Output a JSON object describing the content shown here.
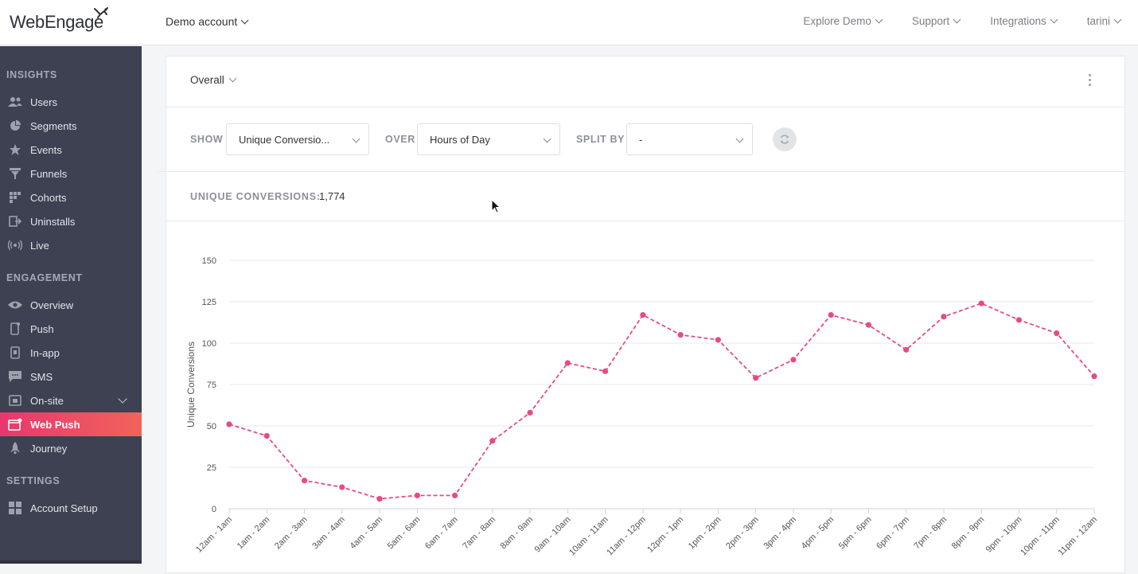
{
  "brand": {
    "logo_text": "WebEngage",
    "accent": "#e8376f",
    "line_color": "#e84a85",
    "sidebar_bg": "#3d4152"
  },
  "header": {
    "account": "Demo account",
    "nav": [
      "Explore Demo",
      "Support",
      "Integrations",
      "tarini"
    ]
  },
  "sidebar": {
    "sections": [
      {
        "title": "INSIGHTS",
        "items": [
          {
            "label": "Users",
            "icon": "users-icon"
          },
          {
            "label": "Segments",
            "icon": "pie-icon"
          },
          {
            "label": "Events",
            "icon": "star-icon"
          },
          {
            "label": "Funnels",
            "icon": "funnel-icon"
          },
          {
            "label": "Cohorts",
            "icon": "grid-icon"
          },
          {
            "label": "Uninstalls",
            "icon": "exit-icon"
          },
          {
            "label": "Live",
            "icon": "broadcast-icon"
          }
        ]
      },
      {
        "title": "ENGAGEMENT",
        "items": [
          {
            "label": "Overview",
            "icon": "eye-icon"
          },
          {
            "label": "Push",
            "icon": "mobile-icon"
          },
          {
            "label": "In-app",
            "icon": "inapp-icon"
          },
          {
            "label": "SMS",
            "icon": "sms-icon"
          },
          {
            "label": "On-site",
            "icon": "onsite-icon"
          },
          {
            "label": "Web Push",
            "icon": "webpush-icon",
            "active": true
          },
          {
            "label": "Journey",
            "icon": "rocket-icon"
          }
        ]
      },
      {
        "title": "SETTINGS",
        "items": [
          {
            "label": "Account Setup",
            "icon": "apps-icon"
          }
        ]
      }
    ]
  },
  "card": {
    "scope": "Overall",
    "filters": {
      "show_label": "SHOW",
      "show_value": "Unique Conversio...",
      "over_label": "OVER",
      "over_value": "Hours of Day",
      "split_label": "SPLIT BY",
      "split_value": "-"
    },
    "summary": {
      "label": "UNIQUE CONVERSIONS:",
      "value": "1,774"
    }
  },
  "chart_data": {
    "type": "line",
    "ylabel": "Unique Conversions",
    "xlabel": "",
    "ylim": [
      0,
      150
    ],
    "yticks": [
      0,
      25,
      50,
      75,
      100,
      125,
      150
    ],
    "grid": true,
    "line_style": "dashed",
    "categories": [
      "12am - 1am",
      "1am - 2am",
      "2am - 3am",
      "3am - 4am",
      "4am - 5am",
      "5am - 6am",
      "6am - 7am",
      "7am - 8am",
      "8am - 9am",
      "9am - 10am",
      "10am - 11am",
      "11am - 12pm",
      "12pm - 1pm",
      "1pm - 2pm",
      "2pm - 3pm",
      "3pm - 4pm",
      "4pm - 5pm",
      "5pm - 6pm",
      "6pm - 7pm",
      "7pm - 8pm",
      "8pm - 9pm",
      "9pm - 10pm",
      "10pm - 11pm",
      "11pm - 12am"
    ],
    "series": [
      {
        "values": [
          51,
          44,
          17,
          13,
          6,
          8,
          8,
          41,
          58,
          88,
          83,
          117,
          105,
          102,
          79,
          90,
          117,
          111,
          96,
          116,
          124,
          114,
          106,
          80
        ]
      }
    ]
  }
}
